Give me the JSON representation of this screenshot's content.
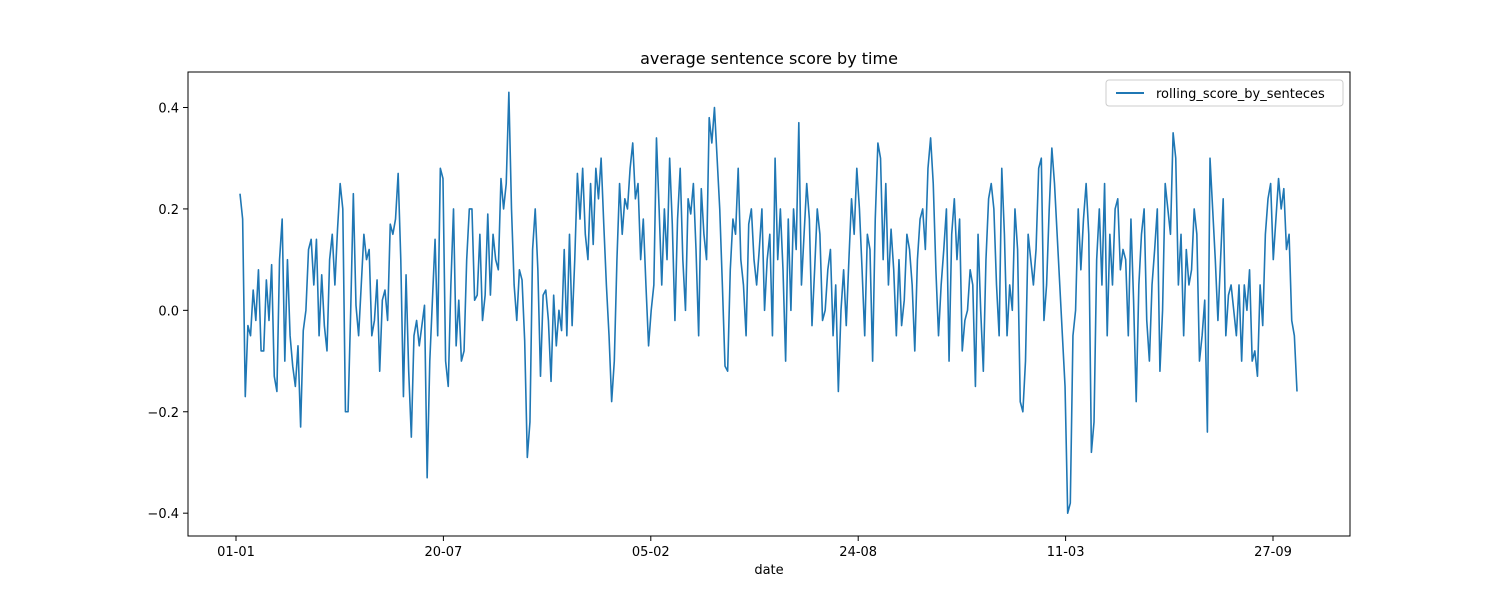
{
  "chart_data": {
    "type": "line",
    "title": "average sentence score by time",
    "xlabel": "date",
    "ylabel": "",
    "x_tick_labels": [
      "01-01",
      "20-07",
      "05-02",
      "24-08",
      "11-03",
      "27-09"
    ],
    "y_tick_labels": [
      "−0.4",
      "−0.2",
      "0.0",
      "0.2",
      "0.4"
    ],
    "y_ticks": [
      -0.4,
      -0.2,
      0.0,
      0.2,
      0.4
    ],
    "ylim": [
      -0.445,
      0.47
    ],
    "grid": false,
    "legend_position": "top-right",
    "color": "#1f77b4",
    "series": [
      {
        "name": "rolling_score_by_senteces",
        "values": [
          0.23,
          0.18,
          -0.17,
          -0.03,
          -0.05,
          0.04,
          -0.02,
          0.08,
          -0.08,
          -0.08,
          0.06,
          -0.02,
          0.09,
          -0.13,
          -0.16,
          0.1,
          0.18,
          -0.1,
          0.1,
          -0.05,
          -0.11,
          -0.15,
          -0.07,
          -0.23,
          -0.04,
          0.0,
          0.12,
          0.14,
          0.05,
          0.14,
          -0.05,
          0.07,
          -0.03,
          -0.08,
          0.1,
          0.15,
          0.05,
          0.16,
          0.25,
          0.2,
          -0.2,
          -0.2,
          0.0,
          0.23,
          0.01,
          -0.05,
          0.05,
          0.15,
          0.1,
          0.12,
          -0.05,
          -0.02,
          0.06,
          -0.12,
          0.02,
          0.04,
          -0.02,
          0.17,
          0.15,
          0.18,
          0.27,
          0.1,
          -0.17,
          0.07,
          -0.12,
          -0.25,
          -0.05,
          -0.02,
          -0.07,
          -0.03,
          0.01,
          -0.33,
          -0.1,
          0.02,
          0.14,
          -0.05,
          0.28,
          0.26,
          -0.1,
          -0.15,
          0.05,
          0.2,
          -0.07,
          0.02,
          -0.1,
          -0.08,
          0.1,
          0.2,
          0.2,
          0.02,
          0.03,
          0.15,
          -0.02,
          0.03,
          0.19,
          0.03,
          0.15,
          0.1,
          0.08,
          0.26,
          0.2,
          0.25,
          0.43,
          0.2,
          0.05,
          -0.02,
          0.08,
          0.06,
          -0.06,
          -0.29,
          -0.22,
          0.12,
          0.2,
          0.08,
          -0.13,
          0.03,
          0.04,
          -0.02,
          -0.14,
          0.03,
          -0.07,
          0.0,
          -0.04,
          0.12,
          -0.05,
          0.15,
          -0.03,
          0.1,
          0.27,
          0.18,
          0.28,
          0.15,
          0.1,
          0.25,
          0.13,
          0.28,
          0.22,
          0.3,
          0.17,
          0.05,
          -0.05,
          -0.18,
          -0.1,
          0.1,
          0.25,
          0.15,
          0.22,
          0.2,
          0.28,
          0.33,
          0.22,
          0.25,
          0.1,
          0.18,
          0.05,
          -0.07,
          0.0,
          0.05,
          0.34,
          0.2,
          0.05,
          0.2,
          0.1,
          0.3,
          0.17,
          -0.02,
          0.18,
          0.28,
          0.1,
          0.0,
          0.22,
          0.19,
          0.25,
          0.12,
          -0.05,
          0.24,
          0.15,
          0.1,
          0.38,
          0.33,
          0.4,
          0.3,
          0.2,
          0.05,
          -0.11,
          -0.12,
          0.08,
          0.18,
          0.15,
          0.28,
          0.1,
          0.05,
          -0.05,
          0.17,
          0.2,
          0.1,
          0.05,
          0.12,
          0.2,
          0.0,
          0.1,
          0.15,
          -0.05,
          0.3,
          0.1,
          0.2,
          0.08,
          -0.1,
          0.18,
          0.0,
          0.2,
          0.12,
          0.37,
          0.05,
          0.15,
          0.25,
          0.18,
          -0.03,
          0.08,
          0.2,
          0.15,
          -0.02,
          0.0,
          0.08,
          0.12,
          -0.05,
          0.05,
          -0.16,
          0.0,
          0.08,
          -0.03,
          0.1,
          0.22,
          0.15,
          0.28,
          0.2,
          0.08,
          -0.05,
          0.15,
          0.12,
          -0.1,
          0.18,
          0.33,
          0.3,
          0.1,
          0.25,
          0.05,
          0.16,
          0.08,
          -0.05,
          0.1,
          -0.03,
          0.02,
          0.15,
          0.12,
          0.05,
          -0.08,
          0.1,
          0.18,
          0.2,
          0.12,
          0.28,
          0.34,
          0.25,
          0.08,
          -0.05,
          0.05,
          0.12,
          0.2,
          -0.1,
          0.15,
          0.22,
          0.1,
          0.18,
          -0.08,
          -0.02,
          0.0,
          0.08,
          0.05,
          -0.15,
          0.15,
          0.0,
          -0.12,
          0.1,
          0.22,
          0.25,
          0.2,
          0.05,
          -0.05,
          0.28,
          0.15,
          -0.05,
          0.05,
          0.0,
          0.2,
          0.12,
          -0.18,
          -0.2,
          -0.1,
          0.15,
          0.1,
          0.05,
          0.12,
          0.28,
          0.3,
          -0.02,
          0.05,
          0.2,
          0.32,
          0.25,
          0.15,
          0.05,
          -0.05,
          -0.15,
          -0.4,
          -0.38,
          -0.05,
          0.0,
          0.2,
          0.08,
          0.18,
          0.25,
          0.15,
          -0.28,
          -0.22,
          0.1,
          0.2,
          0.05,
          0.25,
          -0.05,
          0.15,
          0.05,
          0.2,
          0.22,
          0.08,
          0.12,
          0.1,
          -0.05,
          0.18,
          0.02,
          -0.18,
          0.05,
          0.15,
          0.2,
          -0.02,
          -0.1,
          0.05,
          0.12,
          0.2,
          -0.12,
          0.0,
          0.25,
          0.2,
          0.15,
          0.35,
          0.3,
          0.05,
          0.15,
          -0.05,
          0.12,
          0.05,
          0.08,
          0.2,
          0.15,
          -0.1,
          -0.05,
          0.02,
          -0.24,
          0.3,
          0.2,
          0.1,
          -0.02,
          0.1,
          0.22,
          -0.05,
          0.03,
          0.05,
          0.0,
          -0.05,
          0.05,
          -0.1,
          0.05,
          0.0,
          0.08,
          -0.1,
          -0.08,
          -0.13,
          0.05,
          -0.03,
          0.15,
          0.22,
          0.25,
          0.1,
          0.18,
          0.26,
          0.2,
          0.24,
          0.12,
          0.15,
          -0.02,
          -0.05,
          -0.16
        ]
      }
    ]
  }
}
